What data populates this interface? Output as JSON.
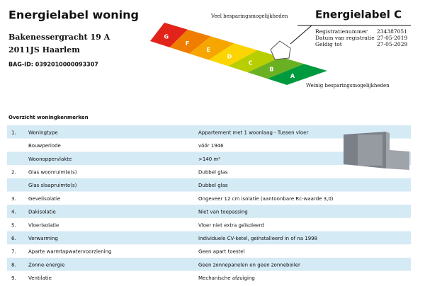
{
  "header": {
    "title": "Energielabel woning",
    "address_line1": "Bakenessergracht 19 A",
    "address_line2": "2011JS Haarlem",
    "bag_id": "BAG-ID: 0392010000093307"
  },
  "label": {
    "top_caption": "Veel besparingsmogelijkheden",
    "bottom_caption": "Weinig besparingsmogelijkheden",
    "title": "Energielabel C",
    "letters": [
      "G",
      "F",
      "E",
      "D",
      "C",
      "B",
      "A"
    ],
    "fields": [
      {
        "name": "Registratienummer",
        "value": "234387051"
      },
      {
        "name": "Datum van registratie",
        "value": "27-05-2019"
      },
      {
        "name": "Geldig tot",
        "value": "27-05-2029"
      }
    ]
  },
  "table": {
    "title": "Overzicht woningkenmerken",
    "rows": [
      [
        "1.",
        "Woningtype",
        "Appartement met 1 woonlaag - Tussen vloer"
      ],
      [
        null,
        "Bouwperiode",
        "vóór 1946"
      ],
      [
        null,
        "Woonoppervlakte",
        ">140 m²"
      ],
      [
        "2.",
        "Glas woonruimte(s)",
        "Dubbel glas"
      ],
      [
        null,
        "Glas slaapruimte(s)",
        "Dubbel glas"
      ],
      [
        "3.",
        "Gevelisolatie",
        "Ongeveer 12 cm isolatie (aantoonbare Rc-waarde 3,0)"
      ],
      [
        "4.",
        "Dakisolatie",
        "Niet van toepassing"
      ],
      [
        "5.",
        "Vloerisolatie",
        "Vloer niet extra geïsoleerd"
      ],
      [
        "6.",
        "Verwarming",
        "Individuele CV-ketel, geïnstalleerd in of na 1998"
      ],
      [
        "7.",
        "Aparte warmtapwatervoorziening",
        "Geen apart toestel"
      ],
      [
        "8.",
        "Zonne-energie",
        "Geen zonnepanelen en geen zonneboiler"
      ],
      [
        "9.",
        "Ventilatie",
        "Mechanische afzuiging"
      ]
    ]
  }
}
